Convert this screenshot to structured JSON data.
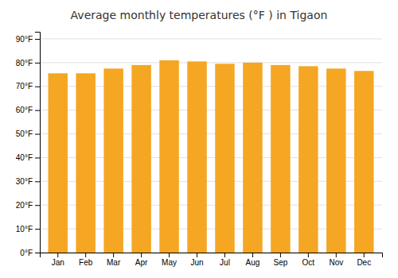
{
  "chart_data": {
    "type": "bar",
    "title": "Average monthly temperatures (°F ) in Tigaon",
    "categories": [
      "Jan",
      "Feb",
      "Mar",
      "Apr",
      "May",
      "Jun",
      "Jul",
      "Aug",
      "Sep",
      "Oct",
      "Nov",
      "Dec"
    ],
    "values": [
      75.5,
      75.5,
      77.5,
      79.0,
      81.0,
      80.5,
      79.5,
      80.0,
      79.0,
      78.5,
      77.5,
      76.5
    ],
    "color": "#F5A623",
    "ylim": [
      0,
      93
    ],
    "yticks": [
      {
        "value": 0,
        "label": "0°F"
      },
      {
        "value": 10,
        "label": "10°F"
      },
      {
        "value": 20,
        "label": "20°F"
      },
      {
        "value": 30,
        "label": "30°F"
      },
      {
        "value": 40,
        "label": "40°F"
      },
      {
        "value": 50,
        "label": "50°F"
      },
      {
        "value": 60,
        "label": "60°F"
      },
      {
        "value": 70,
        "label": "70°F"
      },
      {
        "value": 80,
        "label": "80°F"
      },
      {
        "value": 90,
        "label": "90°F"
      }
    ],
    "grid": true
  }
}
